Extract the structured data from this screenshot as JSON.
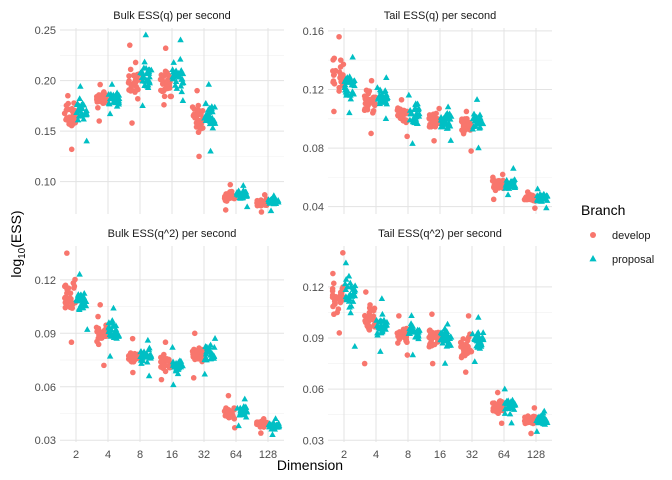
{
  "chart_data": {
    "type": "scatter",
    "subtype": "jittered strip plot, faceted 2x2",
    "xlabel": "Dimension",
    "ylabel": "log10(ESS)",
    "ylabel_base": "log",
    "ylabel_sub": "10",
    "ylabel_rest": "(ESS)",
    "categories": [
      "2",
      "4",
      "8",
      "16",
      "32",
      "64",
      "128"
    ],
    "legend": {
      "title": "Branch",
      "position": "right",
      "entries": [
        {
          "name": "develop",
          "color": "#F8766D",
          "shape": "circle"
        },
        {
          "name": "proposal",
          "color": "#00BFC4",
          "shape": "triangle"
        }
      ]
    },
    "grid": true,
    "panels": [
      {
        "title": "Bulk ESS(q) per second",
        "ylim": [
          0.068,
          0.252
        ],
        "yticks": [
          "0.10",
          "0.15",
          "0.20",
          "0.25"
        ],
        "series": [
          {
            "name": "develop",
            "center": [
              0.165,
              0.182,
              0.2,
              0.197,
              0.16,
              0.087,
              0.079
            ],
            "min": [
              0.132,
              0.16,
              0.158,
              0.176,
              0.125,
              0.072,
              0.07
            ],
            "max": [
              0.185,
              0.196,
              0.235,
              0.232,
              0.19,
              0.097,
              0.087
            ]
          },
          {
            "name": "proposal",
            "center": [
              0.17,
              0.183,
              0.202,
              0.205,
              0.165,
              0.087,
              0.08
            ],
            "min": [
              0.14,
              0.167,
              0.175,
              0.18,
              0.13,
              0.075,
              0.071
            ],
            "max": [
              0.194,
              0.196,
              0.245,
              0.24,
              0.196,
              0.096,
              0.086
            ]
          }
        ]
      },
      {
        "title": "Tail ESS(q) per second",
        "ylim": [
          0.035,
          0.162
        ],
        "yticks": [
          "0.04",
          "0.08",
          "0.12",
          "0.16"
        ],
        "series": [
          {
            "name": "develop",
            "center": [
              0.13,
              0.112,
              0.102,
              0.098,
              0.095,
              0.055,
              0.046
            ],
            "min": [
              0.105,
              0.09,
              0.088,
              0.085,
              0.078,
              0.045,
              0.039
            ],
            "max": [
              0.156,
              0.126,
              0.113,
              0.107,
              0.105,
              0.062,
              0.05
            ]
          },
          {
            "name": "proposal",
            "center": [
              0.122,
              0.115,
              0.103,
              0.098,
              0.097,
              0.056,
              0.046
            ],
            "min": [
              0.104,
              0.1,
              0.083,
              0.085,
              0.08,
              0.048,
              0.039
            ],
            "max": [
              0.142,
              0.128,
              0.116,
              0.108,
              0.113,
              0.066,
              0.052
            ]
          }
        ]
      },
      {
        "title": "Bulk ESS(q^2) per second",
        "ylim": [
          0.029,
          0.139
        ],
        "yticks": [
          "0.03",
          "0.06",
          "0.09",
          "0.12"
        ],
        "series": [
          {
            "name": "develop",
            "center": [
              0.11,
              0.09,
              0.077,
              0.073,
              0.078,
              0.045,
              0.039
            ],
            "min": [
              0.085,
              0.072,
              0.068,
              0.064,
              0.065,
              0.037,
              0.034
            ],
            "max": [
              0.135,
              0.106,
              0.087,
              0.085,
              0.09,
              0.055,
              0.042
            ]
          },
          {
            "name": "proposal",
            "center": [
              0.108,
              0.091,
              0.077,
              0.072,
              0.079,
              0.046,
              0.038
            ],
            "min": [
              0.092,
              0.077,
              0.066,
              0.061,
              0.067,
              0.038,
              0.033
            ],
            "max": [
              0.123,
              0.104,
              0.086,
              0.082,
              0.087,
              0.053,
              0.042
            ]
          }
        ]
      },
      {
        "title": "Tail ESS(q^2) per second",
        "ylim": [
          0.029,
          0.144
        ],
        "yticks": [
          "0.03",
          "0.06",
          "0.09",
          "0.12"
        ],
        "series": [
          {
            "name": "develop",
            "center": [
              0.115,
              0.1,
              0.092,
              0.09,
              0.086,
              0.05,
              0.042
            ],
            "min": [
              0.093,
              0.075,
              0.08,
              0.075,
              0.07,
              0.04,
              0.034
            ],
            "max": [
              0.14,
              0.117,
              0.103,
              0.104,
              0.103,
              0.058,
              0.049
            ]
          },
          {
            "name": "proposal",
            "center": [
              0.116,
              0.098,
              0.093,
              0.089,
              0.088,
              0.05,
              0.042
            ],
            "min": [
              0.085,
              0.082,
              0.08,
              0.075,
              0.076,
              0.04,
              0.035
            ],
            "max": [
              0.134,
              0.113,
              0.103,
              0.098,
              0.102,
              0.06,
              0.047
            ]
          }
        ]
      }
    ]
  }
}
